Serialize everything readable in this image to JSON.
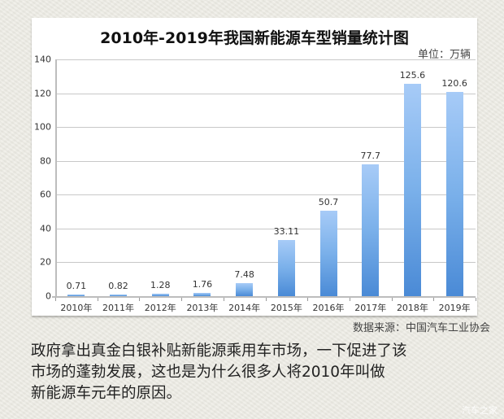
{
  "chart_data": {
    "type": "bar",
    "title": "2010年-2019年我国新能源车型销量统计图",
    "unit_label": "单位：万辆",
    "xlabel": "",
    "ylabel": "",
    "categories": [
      "2010年",
      "2011年",
      "2012年",
      "2013年",
      "2014年",
      "2015年",
      "2016年",
      "2017年",
      "2018年",
      "2019年"
    ],
    "values": [
      0.71,
      0.82,
      1.28,
      1.76,
      7.48,
      33.11,
      50.7,
      77.7,
      125.6,
      120.6
    ],
    "value_labels": [
      "0.71",
      "0.82",
      "1.28",
      "1.76",
      "7.48",
      "33.11",
      "50.7",
      "77.7",
      "125.6",
      "120.6"
    ],
    "ylim": [
      0,
      140
    ],
    "yticks": [
      "0",
      "20",
      "40",
      "60",
      "80",
      "100",
      "120",
      "140"
    ],
    "grid": true,
    "legend": "none",
    "bar_color_top": "#a7cbf7",
    "bar_color_bottom": "#4a8ad6"
  },
  "source": "数据来源：中国汽车工业协会",
  "caption": {
    "lines": [
      "政府拿出真金白银补贴新能源乘用车市场，一下促进了该",
      "市场的蓬勃发展，这也是为什么很多人将2010年叫做",
      "新能源车元年的原因。"
    ]
  },
  "watermark": "汽车之家"
}
